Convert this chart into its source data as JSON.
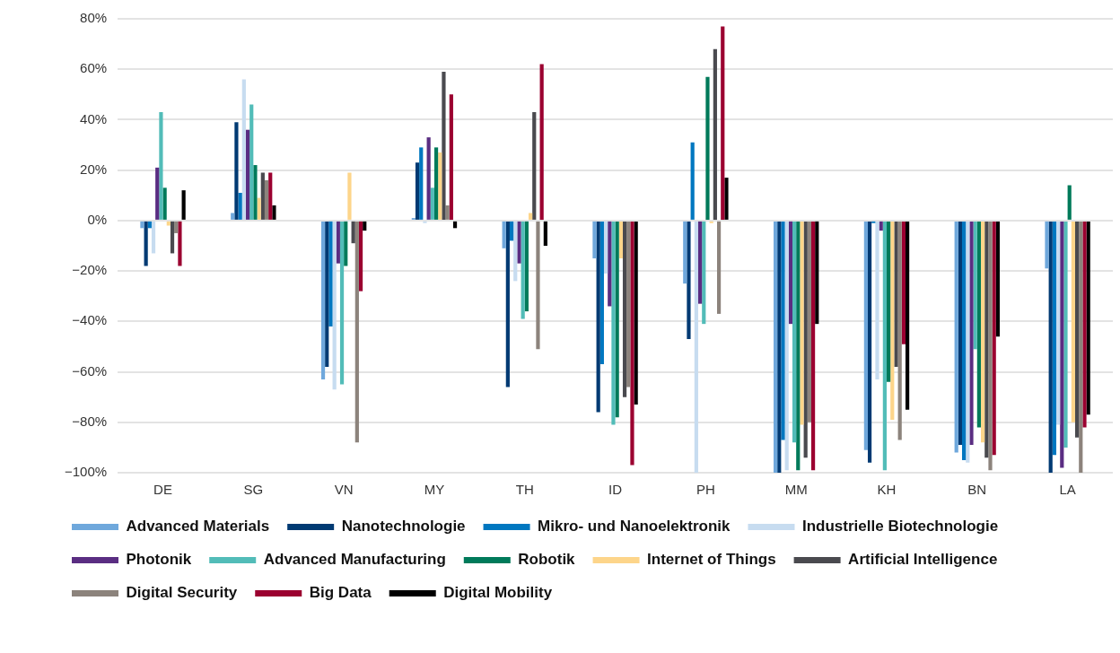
{
  "chart_data": {
    "type": "bar",
    "categories": [
      "DE",
      "SG",
      "VN",
      "MY",
      "TH",
      "ID",
      "PH",
      "MM",
      "KH",
      "BN",
      "LA"
    ],
    "series": [
      {
        "name": "Advanced Materials",
        "color": "#6fa8dc",
        "values": [
          -3,
          3,
          -63,
          1,
          -11,
          -15,
          -25,
          -100,
          -91,
          -92,
          -19
        ]
      },
      {
        "name": "Nanotechnologie",
        "color": "#003a73",
        "values": [
          -18,
          39,
          -58,
          23,
          -66,
          -76,
          -47,
          -100,
          -96,
          -89,
          -100
        ]
      },
      {
        "name": "Mikro- und Nanoelektronik",
        "color": "#0077c0",
        "values": [
          -3,
          11,
          -42,
          29,
          -8,
          -57,
          31,
          -87,
          -1,
          -95,
          -93
        ]
      },
      {
        "name": "Industrielle Biotechnologie",
        "color": "#c7dcf0",
        "values": [
          -13,
          56,
          -67,
          -1,
          -24,
          -21,
          -100,
          -99,
          -63,
          -96,
          -81
        ]
      },
      {
        "name": "Photonik",
        "color": "#5a2d82",
        "values": [
          21,
          36,
          -17,
          33,
          -17,
          -34,
          -33,
          -41,
          -4,
          -89,
          -98
        ]
      },
      {
        "name": "Advanced Manufacturing",
        "color": "#52bcb8",
        "values": [
          43,
          46,
          -65,
          13,
          -39,
          -81,
          -41,
          -88,
          -99,
          -51,
          -90
        ]
      },
      {
        "name": "Robotik",
        "color": "#007a5a",
        "values": [
          13,
          22,
          -18,
          29,
          -36,
          -78,
          57,
          -99,
          -64,
          -82,
          14
        ]
      },
      {
        "name": "Internet of Things",
        "color": "#fdd58a",
        "values": [
          -2,
          9,
          19,
          27,
          3,
          -15,
          -1,
          -81,
          -79,
          -88,
          -80
        ]
      },
      {
        "name": "Artificial Intelligence",
        "color": "#4a4a4f",
        "values": [
          -13,
          19,
          -9,
          59,
          43,
          -70,
          68,
          -94,
          -58,
          -94,
          -86
        ]
      },
      {
        "name": "Digital Security",
        "color": "#8c837c",
        "values": [
          -5,
          16,
          -88,
          6,
          -51,
          -66,
          -37,
          -80,
          -87,
          -99,
          -100
        ]
      },
      {
        "name": "Big Data",
        "color": "#9b0030",
        "values": [
          -18,
          19,
          -28,
          50,
          62,
          -97,
          77,
          -99,
          -49,
          -93,
          -82
        ]
      },
      {
        "name": "Digital Mobility",
        "color": "#000000",
        "values": [
          12,
          6,
          -4,
          -3,
          -10,
          -73,
          17,
          -41,
          -75,
          -46,
          -77
        ]
      }
    ],
    "ylim": [
      -100,
      80
    ],
    "yticks": [
      {
        "value": -100,
        "label": "−100%"
      },
      {
        "value": -80,
        "label": "−80%"
      },
      {
        "value": -60,
        "label": "−60%"
      },
      {
        "value": -40,
        "label": "−40%"
      },
      {
        "value": -20,
        "label": "−20%"
      },
      {
        "value": 0,
        "label": "0%"
      },
      {
        "value": 20,
        "label": "20%"
      },
      {
        "value": 40,
        "label": "40%"
      },
      {
        "value": 60,
        "label": "60%"
      },
      {
        "value": 80,
        "label": "80%"
      }
    ],
    "grid": "y",
    "legend": "bottom"
  }
}
